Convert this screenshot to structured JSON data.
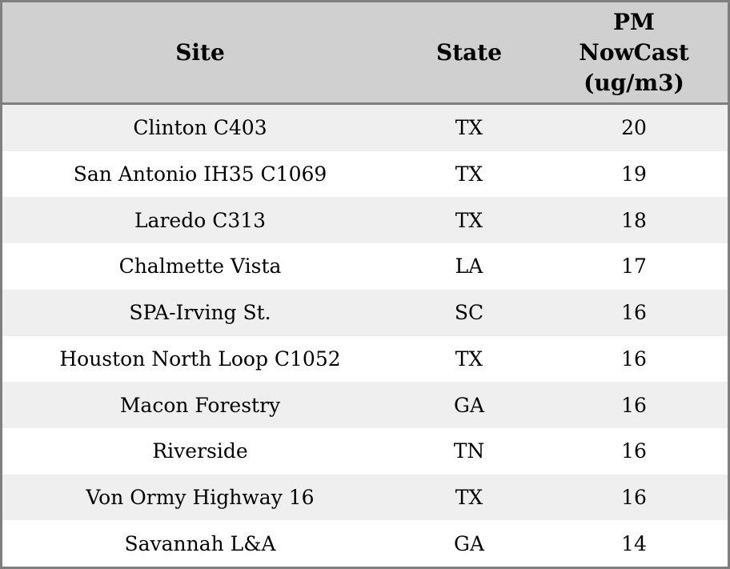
{
  "chart_data": {
    "type": "table",
    "columns": [
      "Site",
      "State",
      "PM NowCast (ug/m3)"
    ],
    "rows": [
      [
        "Clinton C403",
        "TX",
        20
      ],
      [
        "San Antonio IH35 C1069",
        "TX",
        19
      ],
      [
        "Laredo C313",
        "TX",
        18
      ],
      [
        "Chalmette Vista",
        "LA",
        17
      ],
      [
        "SPA-Irving St.",
        "SC",
        16
      ],
      [
        "Houston North Loop C1052",
        "TX",
        16
      ],
      [
        "Macon Forestry",
        "GA",
        16
      ],
      [
        "Riverside",
        "TN",
        16
      ],
      [
        "Von Ormy Highway 16",
        "TX",
        16
      ],
      [
        "Savannah L&A",
        "GA",
        14
      ]
    ],
    "layout": {
      "legend": "none",
      "grid": "off",
      "zebra_striping": true
    }
  },
  "colors": {
    "header_bg": "#d0d0d0",
    "row_stripe_bg": "#efefef",
    "row_bg": "#ffffff",
    "border": "#7f7f7f",
    "text": "#000000"
  }
}
